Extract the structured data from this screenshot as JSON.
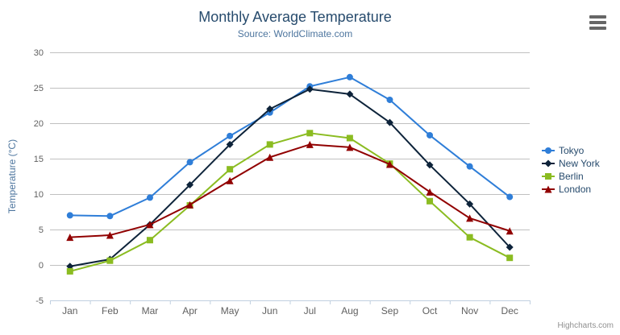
{
  "chart": {
    "credits_label": "Highcharts.com",
    "background_color": "#ffffff",
    "gridline_color": "#c0c0c0",
    "axis_line_color": "#c0d0e0",
    "axis_label_color": "#606060",
    "axis_title_color": "#4d759e",
    "title_color": "#274b6d",
    "subtitle_color": "#4d759e",
    "legend_text_color": "#274b6d",
    "hamburger_icon_color": "#666666"
  },
  "chart_data": {
    "type": "line",
    "title": "Monthly Average Temperature",
    "subtitle": "Source: WorldClimate.com",
    "xlabel": "",
    "ylabel": "Temperature (°C)",
    "categories": [
      "Jan",
      "Feb",
      "Mar",
      "Apr",
      "May",
      "Jun",
      "Jul",
      "Aug",
      "Sep",
      "Oct",
      "Nov",
      "Dec"
    ],
    "series": [
      {
        "name": "Tokyo",
        "color": "#2f7ed8",
        "marker": "circle",
        "values": [
          7.0,
          6.9,
          9.5,
          14.5,
          18.2,
          21.5,
          25.2,
          26.5,
          23.3,
          18.3,
          13.9,
          9.6
        ]
      },
      {
        "name": "New York",
        "color": "#0d233a",
        "marker": "diamond",
        "values": [
          -0.2,
          0.8,
          5.7,
          11.3,
          17.0,
          22.0,
          24.8,
          24.1,
          20.1,
          14.1,
          8.6,
          2.5
        ]
      },
      {
        "name": "Berlin",
        "color": "#8bbc21",
        "marker": "square",
        "values": [
          -0.9,
          0.6,
          3.5,
          8.4,
          13.5,
          17.0,
          18.6,
          17.9,
          14.3,
          9.0,
          3.9,
          1.0
        ]
      },
      {
        "name": "London",
        "color": "#910000",
        "marker": "triangle",
        "values": [
          3.9,
          4.2,
          5.7,
          8.5,
          11.9,
          15.2,
          17.0,
          16.6,
          14.2,
          10.3,
          6.6,
          4.8
        ]
      }
    ],
    "ylim": [
      -5,
      30
    ],
    "yticks": [
      -5,
      0,
      5,
      10,
      15,
      20,
      25,
      30
    ],
    "grid": true,
    "legend_position": "right"
  }
}
